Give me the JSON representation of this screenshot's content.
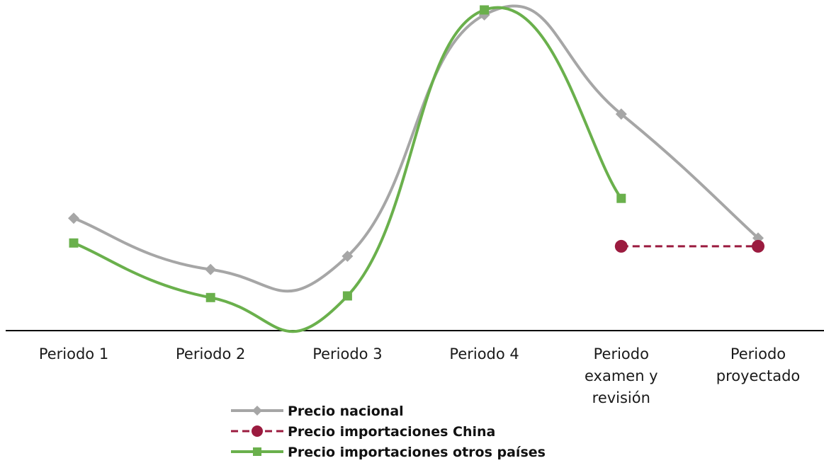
{
  "chart_data": {
    "type": "line",
    "title": "",
    "xlabel": "",
    "ylabel": "",
    "y_axis_visible": false,
    "grid": false,
    "legend_position": "bottom",
    "categories": [
      [
        "Periodo 1"
      ],
      [
        "Periodo 2"
      ],
      [
        "Periodo 3"
      ],
      [
        "Periodo 4"
      ],
      [
        "Periodo",
        "examen y",
        "revisión"
      ],
      [
        "Periodo",
        "proyectado"
      ]
    ],
    "ylim": [
      0,
      100
    ],
    "series": [
      {
        "name": "Precio nacional",
        "color": "#a6a6a6",
        "marker": "diamond",
        "dash": false,
        "smooth": true,
        "values": [
          34,
          18.5,
          22.5,
          95.5,
          65.5,
          28
        ]
      },
      {
        "name": "Precio importaciones China",
        "color": "#9b1b3f",
        "marker": "circle",
        "dash": true,
        "smooth": false,
        "values": [
          null,
          null,
          null,
          null,
          25.5,
          25.5
        ]
      },
      {
        "name": "Precio importaciones otros países",
        "color": "#6ab04c",
        "marker": "square",
        "dash": false,
        "smooth": true,
        "values": [
          26.5,
          10,
          10.5,
          97,
          40,
          null
        ]
      }
    ]
  }
}
